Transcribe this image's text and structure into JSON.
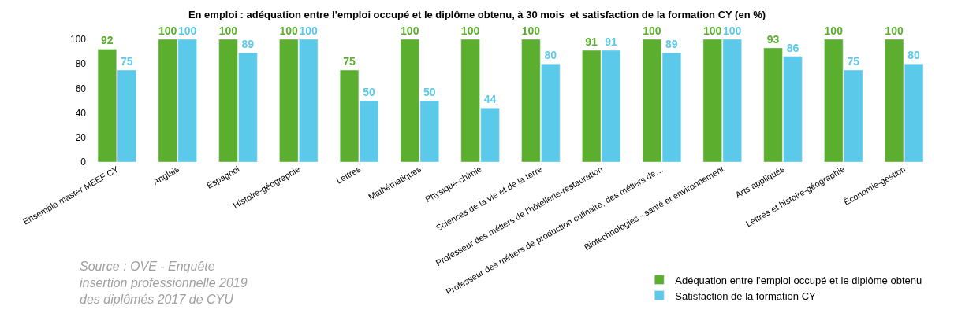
{
  "chart_data": {
    "type": "bar",
    "title": "En emploi : adéquation entre l’emploi occupé et le diplôme obtenu, à 30 mois  et satisfaction de la formation CY (en %)",
    "categories": [
      "Ensemble master MEEF CY",
      "Anglais",
      "Espagnol",
      "Histoire-géographie",
      "Lettres",
      "Mathématiques",
      "Physique-chimie",
      "Sciences de la vie et de la terre",
      "Professeur des métiers de l'hôtellerie-restauration",
      "Professeur des métiers de production culinaire, des métiers de…",
      "Biotechnologies - santé et environnement",
      "Arts appliqués",
      "Lettres et histoire-géographie",
      "Économie-gestion"
    ],
    "series": [
      {
        "name": "Adéquation entre l’emploi occupé et le diplôme obtenu",
        "color": "#5cae2e",
        "values": [
          92,
          100,
          100,
          100,
          75,
          100,
          100,
          100,
          91,
          100,
          100,
          93,
          100,
          100
        ]
      },
      {
        "name": "Satisfaction de la formation CY",
        "color": "#5bc9e9",
        "values": [
          75,
          100,
          89,
          100,
          50,
          50,
          44,
          80,
          91,
          89,
          100,
          86,
          75,
          80
        ]
      }
    ],
    "ylim": [
      0,
      100
    ],
    "yticks": [
      0,
      20,
      40,
      60,
      80,
      100
    ],
    "legend": "bottom right",
    "data_labels": true,
    "annotations": [
      "Source : OVE - Enquête insertion professionnelle 2019 des diplômés 2017 de CYU"
    ]
  }
}
